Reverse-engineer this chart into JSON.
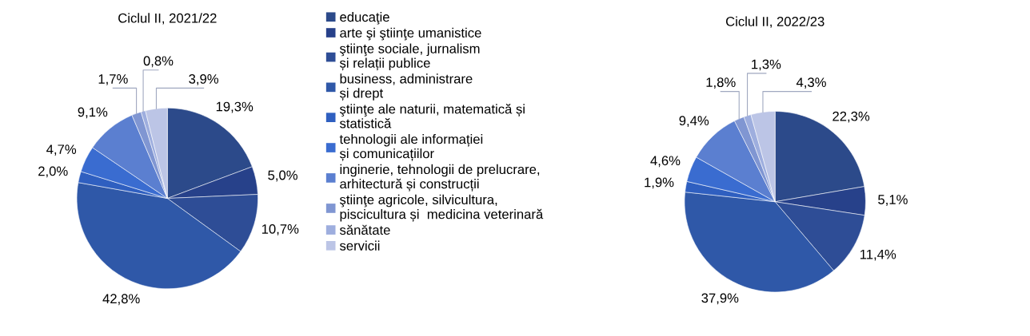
{
  "chart_data": [
    {
      "type": "pie",
      "title": "Ciclul II, 2021/22",
      "legend": "right",
      "categories": [
        "educaţie",
        "arte şi ştiinţe umanistice",
        "ştiinţe sociale, jurnalism\nși relații publice",
        "business, administrare\nși drept",
        "ştiinţe ale naturii, matematică și\nstatistică",
        "tehnologii ale informației\nși comunicațiilor",
        "inginerie, tehnologii de prelucrare,\narhitectură și construcții",
        "ştiinţe agricole, silvicultura,\npiscicultura și  medicina veterinară",
        "sănătate",
        "servicii"
      ],
      "values": [
        19.3,
        5.0,
        10.7,
        42.8,
        2.0,
        4.7,
        9.1,
        1.7,
        0.8,
        3.9
      ],
      "value_labels": [
        "19,3%",
        "5,0%",
        "10,7%",
        "42,8%",
        "2,0%",
        "4,7%",
        "9,1%",
        "1,7%",
        "0,8%",
        "3,9%"
      ],
      "colors": [
        "#2c4a8a",
        "#27418a",
        "#2e4d96",
        "#2f58a8",
        "#2f5fc0",
        "#3a6cd0",
        "#5b7fd0",
        "#8096d2",
        "#9eaede",
        "#bcc5e6"
      ]
    },
    {
      "type": "pie",
      "title": "Ciclul II, 2022/23",
      "values": [
        22.3,
        5.1,
        11.4,
        37.9,
        1.9,
        4.6,
        9.4,
        1.8,
        1.3,
        4.3
      ],
      "value_labels": [
        "22,3%",
        "5,1%",
        "11,4%",
        "37,9%",
        "1,9%",
        "4,6%",
        "9,4%",
        "1,8%",
        "1,3%",
        "4,3%"
      ],
      "colors": [
        "#2c4a8a",
        "#27418a",
        "#2e4d96",
        "#2f58a8",
        "#2f5fc0",
        "#3a6cd0",
        "#5b7fd0",
        "#8096d2",
        "#9eaede",
        "#bcc5e6"
      ]
    }
  ]
}
